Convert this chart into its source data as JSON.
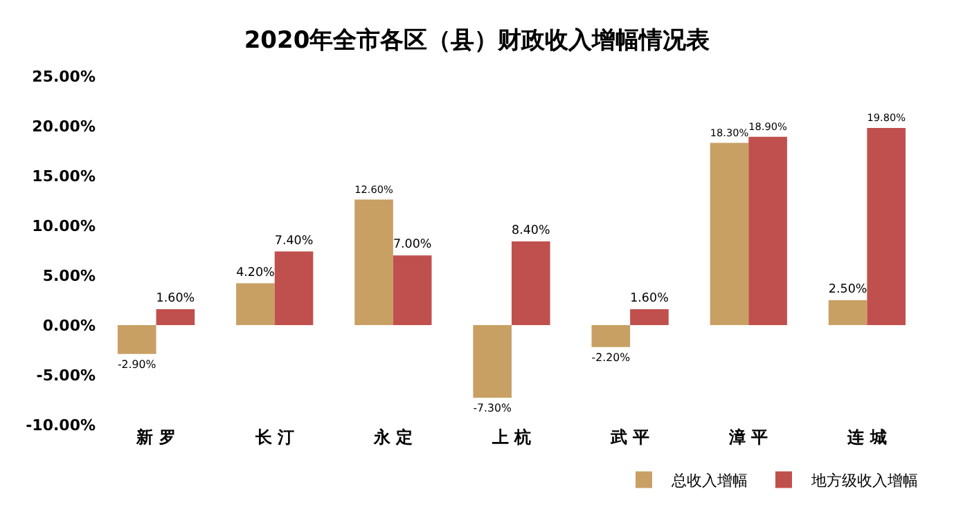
{
  "chart_data": {
    "type": "bar",
    "title": "2020年全市各区（县）财政收入增幅情况表",
    "categories": [
      "新 罗",
      "长 汀",
      "永 定",
      "上 杭",
      "武 平",
      "漳 平",
      "连 城"
    ],
    "series": [
      {
        "name": "总收入增幅",
        "color": "#c8a064",
        "values": [
          -2.9,
          4.2,
          12.6,
          -7.3,
          -2.2,
          18.3,
          2.5
        ],
        "value_labels": [
          "-2.90%",
          "4.20%",
          "12.60%",
          "-7.30%",
          "-2.20%",
          "18.30%",
          "2.50%"
        ]
      },
      {
        "name": "地方级收入增幅",
        "color": "#c0504d",
        "values": [
          1.6,
          7.4,
          7.0,
          8.4,
          1.6,
          18.9,
          19.8
        ],
        "value_labels": [
          "1.60%",
          "7.40%",
          "7.00%",
          "8.40%",
          "1.60%",
          "18.90%",
          "19.80%"
        ]
      }
    ],
    "ylim": [
      -10,
      25
    ],
    "yticks": [
      {
        "value": -10,
        "label": "-10.00%"
      },
      {
        "value": -5,
        "label": "-5.00%"
      },
      {
        "value": 0,
        "label": "0.00%"
      },
      {
        "value": 5,
        "label": "5.00%"
      },
      {
        "value": 10,
        "label": "10.00%"
      },
      {
        "value": 15,
        "label": "15.00%"
      },
      {
        "value": 20,
        "label": "20.00%"
      },
      {
        "value": 25,
        "label": "25.00%"
      }
    ],
    "grid": false,
    "legend": "bottom right"
  }
}
